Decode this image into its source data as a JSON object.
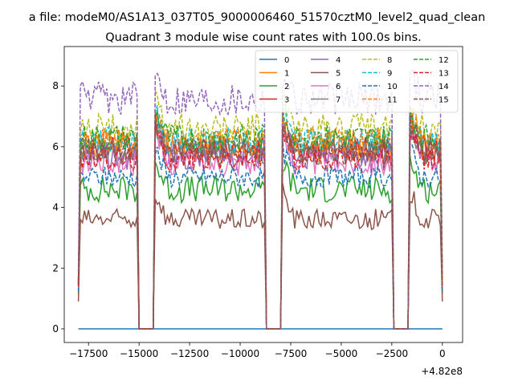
{
  "figure": {
    "suptitle": "a file: modeM0/AS1A13_037T05_9000006460_51570cztM0_level2_quad_clean",
    "title": "Quadrant 3 module wise count rates with 100.0s bins."
  },
  "chart_data": {
    "type": "line",
    "xlim": [
      -18700,
      1000
    ],
    "ylim": [
      -0.45,
      9.3
    ],
    "x_offset_label": "+4.82e8",
    "x_ticks": [
      {
        "value": -17500,
        "label": "−17500"
      },
      {
        "value": -15000,
        "label": "−15000"
      },
      {
        "value": -12500,
        "label": "−12500"
      },
      {
        "value": -10000,
        "label": "−10000"
      },
      {
        "value": -7500,
        "label": "−7500"
      },
      {
        "value": -5000,
        "label": "−5000"
      },
      {
        "value": -2500,
        "label": "−2500"
      },
      {
        "value": 0,
        "label": "0"
      }
    ],
    "y_ticks": [
      {
        "value": 0,
        "label": "0"
      },
      {
        "value": 2,
        "label": "2"
      },
      {
        "value": 4,
        "label": "4"
      },
      {
        "value": 6,
        "label": "6"
      },
      {
        "value": 8,
        "label": "8"
      }
    ],
    "grid": false,
    "legend_position": "top-right",
    "legend_columns": 4,
    "x_range": [
      -18000,
      0
    ],
    "bin_size": 100,
    "gaps": [
      [
        -15100,
        -14200
      ],
      [
        -8800,
        -7900
      ],
      [
        -2500,
        -1600
      ]
    ],
    "series": [
      {
        "name": "0",
        "color": "#1f77b4",
        "dashed": false,
        "level": 0,
        "amp": 0,
        "seed": 0
      },
      {
        "name": "1",
        "color": "#ff7f0e",
        "dashed": false,
        "level": 6.0,
        "amp": 0.6,
        "seed": 11
      },
      {
        "name": "2",
        "color": "#2ca02c",
        "dashed": false,
        "level": 4.6,
        "amp": 0.45,
        "seed": 23
      },
      {
        "name": "3",
        "color": "#d62728",
        "dashed": false,
        "level": 5.9,
        "amp": 0.45,
        "seed": 37
      },
      {
        "name": "4",
        "color": "#9467bd",
        "dashed": false,
        "level": 5.7,
        "amp": 0.5,
        "seed": 41
      },
      {
        "name": "5",
        "color": "#8c564b",
        "dashed": false,
        "level": 3.6,
        "amp": 0.35,
        "seed": 53
      },
      {
        "name": "6",
        "color": "#e377c2",
        "dashed": false,
        "level": 5.5,
        "amp": 0.45,
        "seed": 61
      },
      {
        "name": "7",
        "color": "#7f7f7f",
        "dashed": false,
        "level": 5.8,
        "amp": 0.4,
        "seed": 71
      },
      {
        "name": "8",
        "color": "#bcbd22",
        "dashed": true,
        "level": 6.6,
        "amp": 0.5,
        "seed": 83
      },
      {
        "name": "9",
        "color": "#17becf",
        "dashed": true,
        "level": 6.2,
        "amp": 0.45,
        "seed": 97
      },
      {
        "name": "10",
        "color": "#1f77b4",
        "dashed": true,
        "level": 5.0,
        "amp": 0.35,
        "seed": 101
      },
      {
        "name": "11",
        "color": "#ff7f0e",
        "dashed": true,
        "level": 6.2,
        "amp": 0.45,
        "seed": 113
      },
      {
        "name": "12",
        "color": "#2ca02c",
        "dashed": true,
        "level": 6.3,
        "amp": 0.45,
        "seed": 127
      },
      {
        "name": "13",
        "color": "#d62728",
        "dashed": true,
        "level": 5.6,
        "amp": 0.4,
        "seed": 131
      },
      {
        "name": "14",
        "color": "#9467bd",
        "dashed": true,
        "level": 7.6,
        "amp": 0.55,
        "seed": 149
      },
      {
        "name": "15",
        "color": "#8c564b",
        "dashed": true,
        "level": 5.9,
        "amp": 0.4,
        "seed": 157
      }
    ]
  }
}
